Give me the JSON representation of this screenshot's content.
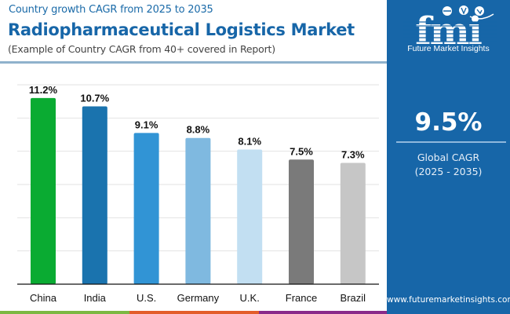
{
  "header": {
    "subtitle": "Country growth CAGR from 2025 to 2035",
    "title": "Radiopharmaceutical Logistics Market",
    "note": "(Example of Country CAGR from 40+ covered in Report)"
  },
  "panel": {
    "logo_text": "Future Market Insights",
    "logo_mark": "fmi",
    "global_cagr_value": "9.5%",
    "global_cagr_label": "Global CAGR",
    "global_cagr_period": "(2025 - 2035)",
    "website": "www.futuremarketinsights.com",
    "color": "#1766a8"
  },
  "bottom_strip_colors": [
    "#7cb842",
    "#e35d2a",
    "#8a2a8a"
  ],
  "chart_data": {
    "type": "bar",
    "title": "Radiopharmaceutical Logistics Market",
    "subtitle": "Country growth CAGR from 2025 to 2035",
    "xlabel": "",
    "ylabel": "",
    "categories": [
      "China",
      "India",
      "U.S.",
      "Germany",
      "U.K.",
      "France",
      "Brazil"
    ],
    "values": [
      11.2,
      10.7,
      9.1,
      8.8,
      8.1,
      7.5,
      7.3
    ],
    "value_labels": [
      "11.2%",
      "10.7%",
      "9.1%",
      "8.8%",
      "8.1%",
      "7.5%",
      "7.3%"
    ],
    "colors": [
      "#0aab32",
      "#1a73ae",
      "#3194d5",
      "#7fb9e0",
      "#c2dff2",
      "#7a7a7a",
      "#c6c6c6"
    ],
    "ylim": [
      0,
      12
    ],
    "y_gridlines": [
      2,
      4,
      6,
      8,
      10,
      12
    ],
    "grid": true,
    "legend": "none",
    "y_tick_labels_visible": false
  }
}
